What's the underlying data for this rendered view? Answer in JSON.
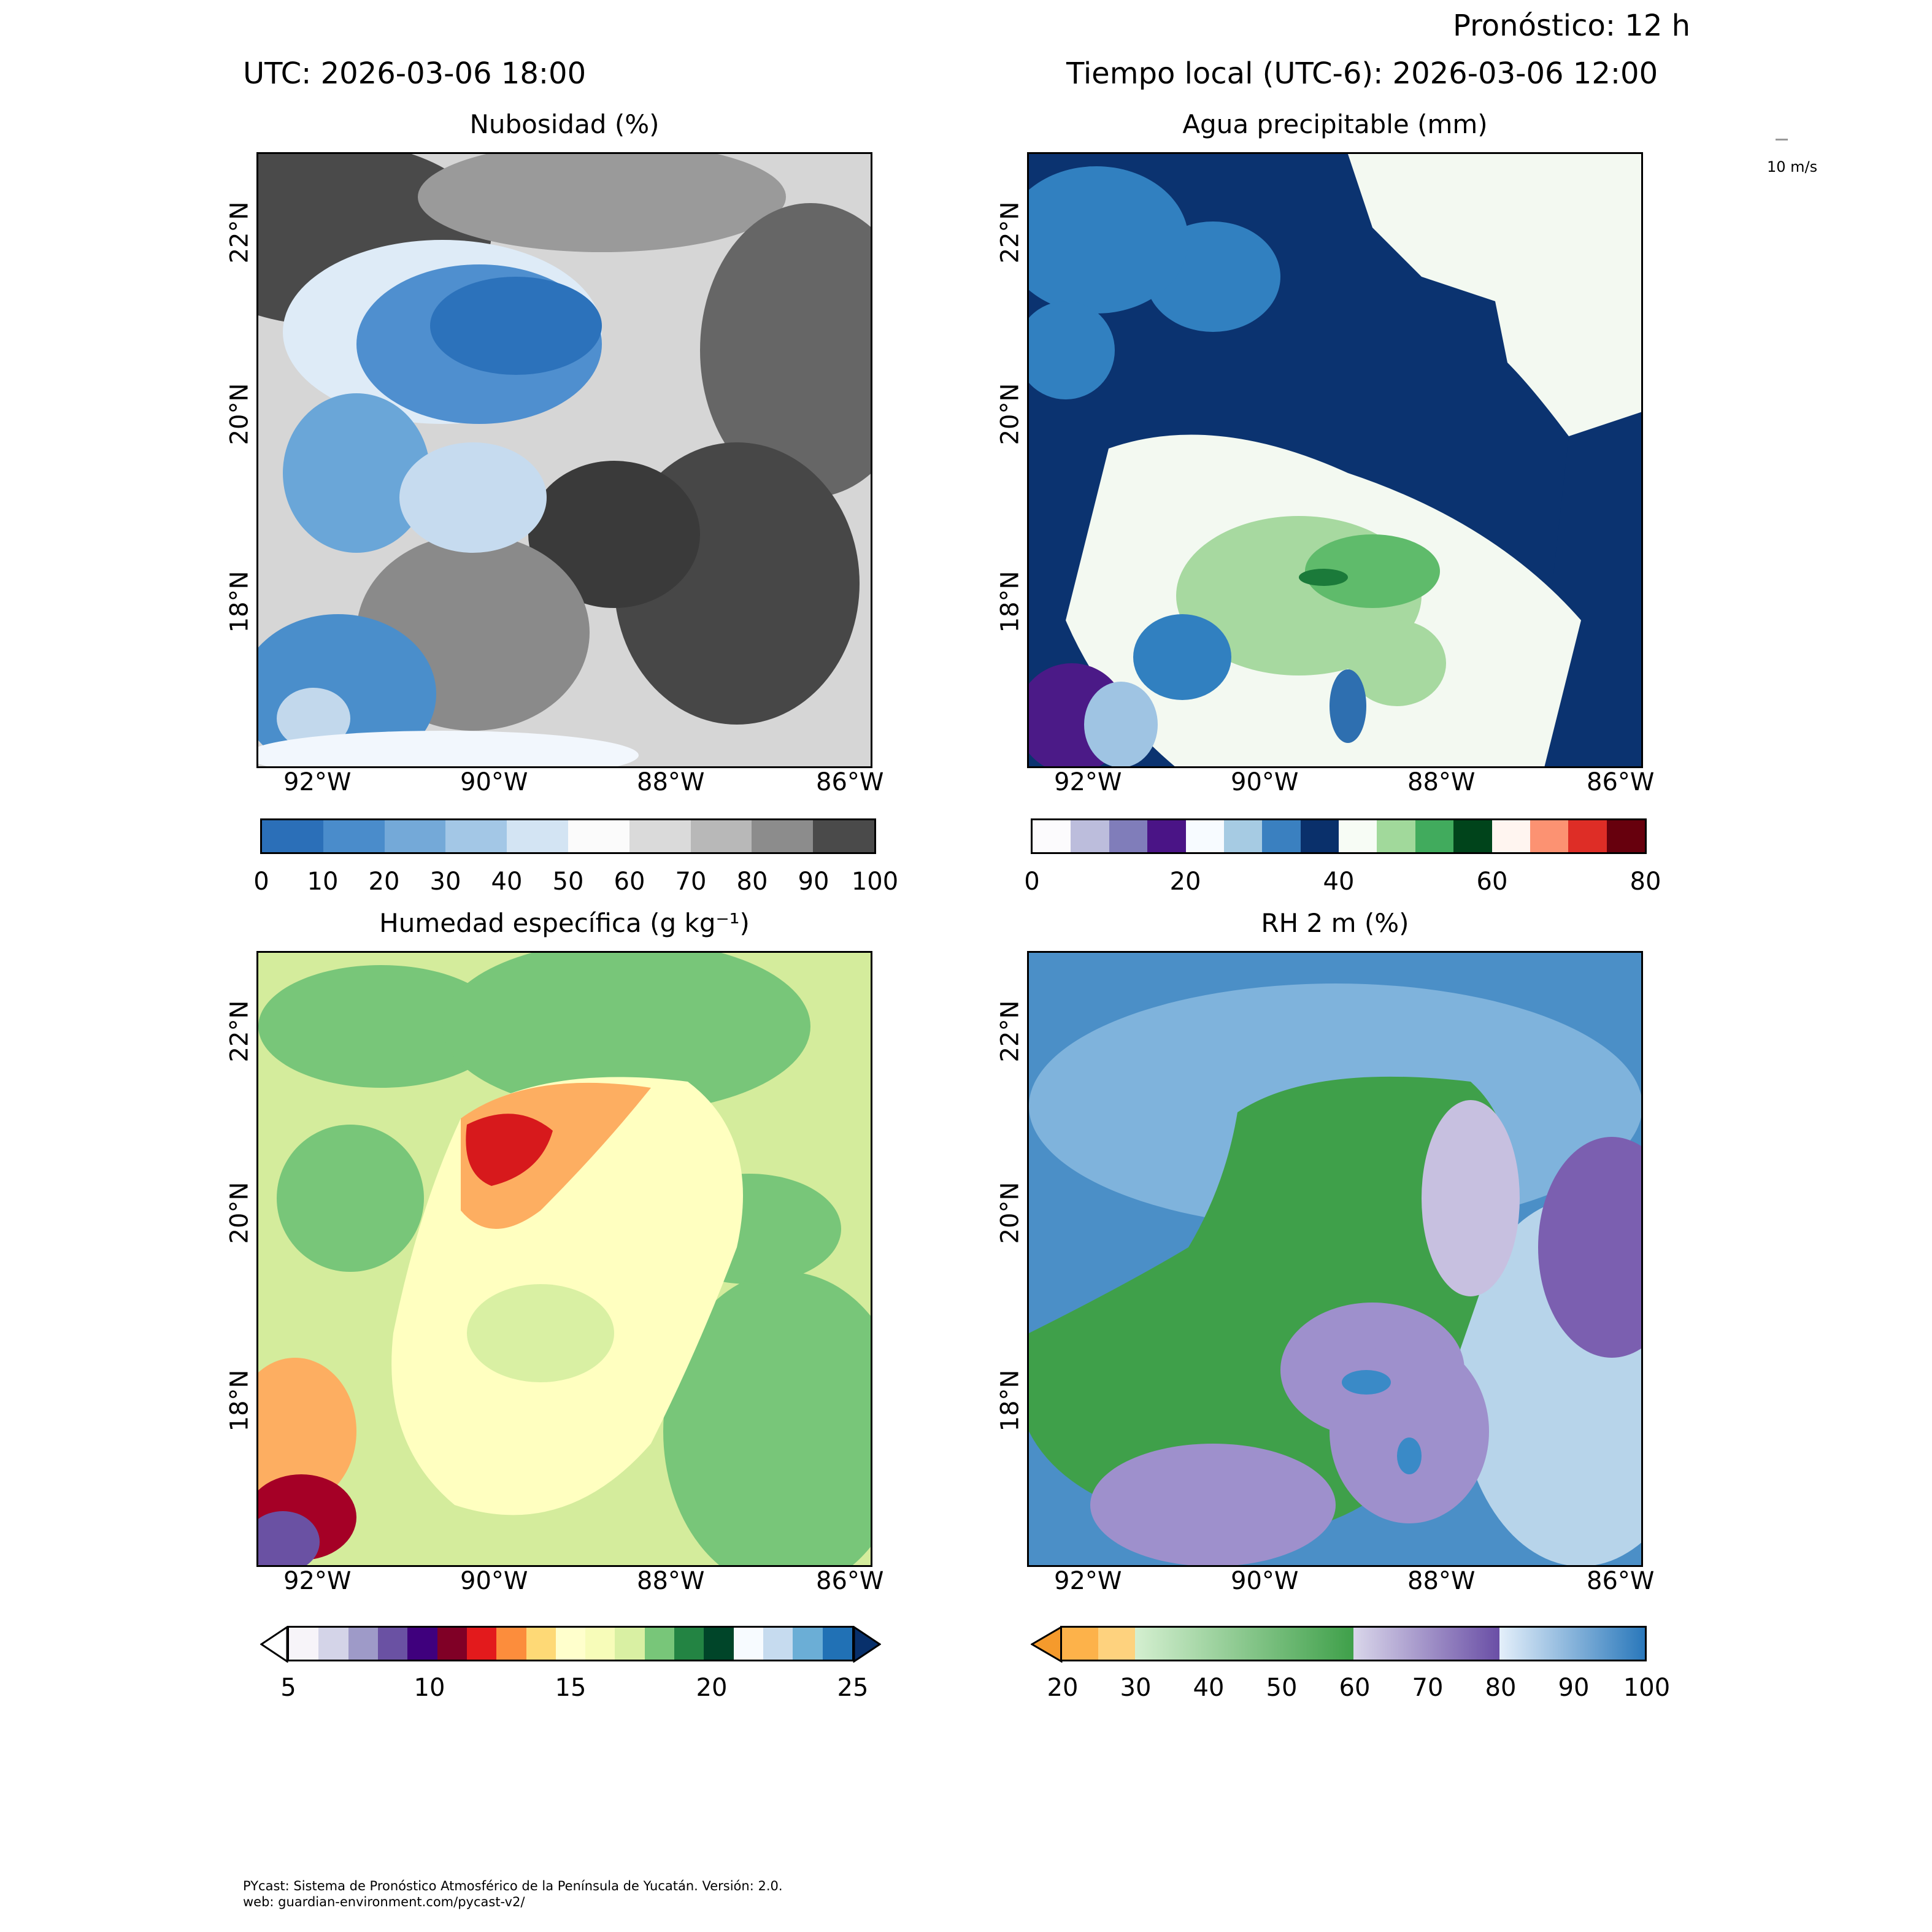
{
  "header": {
    "utc": "UTC:  2026-03-06 18:00",
    "local": "Tiempo local (UTC-6): 2026-03-06 12:00",
    "forecast": "Pronóstico: 12 h"
  },
  "quiver_key": "10 m/s",
  "panels": [
    {
      "title": "Nubosidad (%)",
      "colorbar_ticks": [
        "0",
        "10",
        "20",
        "30",
        "40",
        "50",
        "60",
        "70",
        "80",
        "90",
        "100"
      ],
      "colormap": "Blues-Greys"
    },
    {
      "title": "Agua precipitable (mm)",
      "colorbar_ticks": [
        "0",
        "20",
        "40",
        "60",
        "80"
      ],
      "colormap": "precipitable-water"
    },
    {
      "title": "Humedad específica (g kg⁻¹)",
      "colorbar_ticks": [
        "5",
        "10",
        "15",
        "20",
        "25"
      ],
      "colormap": "specific-humidity"
    },
    {
      "title": "RH 2 m (%)",
      "colorbar_ticks": [
        "20",
        "30",
        "40",
        "50",
        "60",
        "70",
        "80",
        "90",
        "100"
      ],
      "colormap": "relative-humidity"
    }
  ],
  "axes": {
    "lon_ticks": [
      "92°W",
      "90°W",
      "88°W",
      "86°W"
    ],
    "lat_ticks": [
      "22°N",
      "20°N",
      "18°N"
    ]
  },
  "footer": {
    "line1": "PYcast: Sistema de Pronóstico Atmosférico de la Península de Yucatán. Versión: 2.0.",
    "line2": "web: guardian-environment.com/pycast-v2/"
  },
  "colors": {
    "cloud_blue": "#2f7bc3",
    "cloud_grey": "#3c3c3c",
    "pw_navy": "#0a306b",
    "pw_green": "#a7d9a0",
    "q_green": "#78c679",
    "q_yellow": "#ffffc0",
    "q_red": "#d7191c",
    "rh_green": "#3fa04a",
    "rh_purple": "#7b5fb0",
    "rh_blue": "#3a8ac7"
  }
}
